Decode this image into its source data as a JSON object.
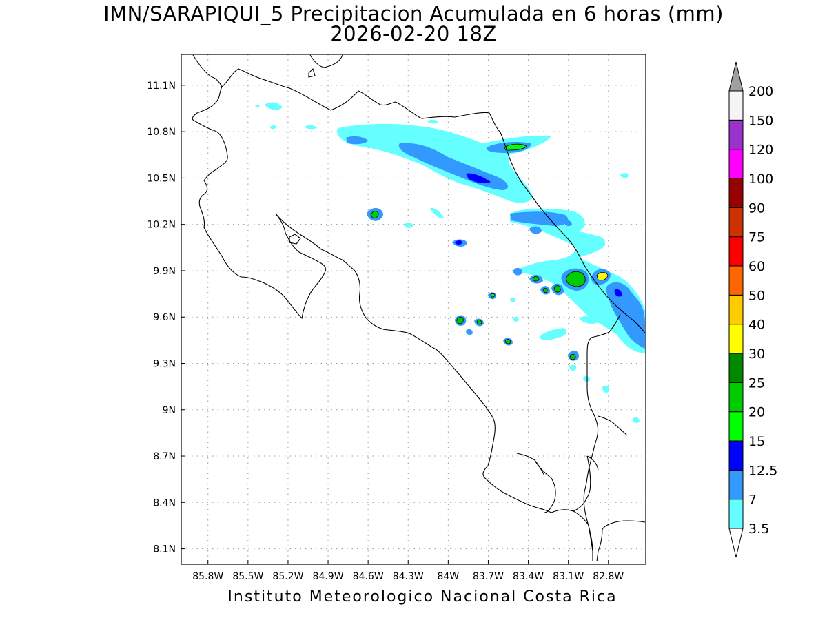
{
  "title": "IMN/SARAPIQUI_5 Precipitacion Acumulada en 6 horas (mm)",
  "subtitle": "2026-02-20 18Z",
  "credit": "Instituto Meteorologico Nacional Costa Rica",
  "map": {
    "lon_range": [
      -86.0,
      -82.52
    ],
    "lat_range": [
      8.0,
      11.3
    ],
    "x_ticks": [
      {
        "lon": -85.8,
        "label": "85.8W"
      },
      {
        "lon": -85.5,
        "label": "85.5W"
      },
      {
        "lon": -85.2,
        "label": "85.2W"
      },
      {
        "lon": -84.9,
        "label": "84.9W"
      },
      {
        "lon": -84.6,
        "label": "84.6W"
      },
      {
        "lon": -84.3,
        "label": "84.3W"
      },
      {
        "lon": -84.0,
        "label": "84W"
      },
      {
        "lon": -83.7,
        "label": "83.7W"
      },
      {
        "lon": -83.4,
        "label": "83.4W"
      },
      {
        "lon": -83.1,
        "label": "83.1W"
      },
      {
        "lon": -82.8,
        "label": "82.8W"
      }
    ],
    "y_ticks": [
      {
        "lat": 11.1,
        "label": "11.1N"
      },
      {
        "lat": 10.8,
        "label": "10.8N"
      },
      {
        "lat": 10.5,
        "label": "10.5N"
      },
      {
        "lat": 10.2,
        "label": "10.2N"
      },
      {
        "lat": 9.9,
        "label": "9.9N"
      },
      {
        "lat": 9.6,
        "label": "9.6N"
      },
      {
        "lat": 9.3,
        "label": "9.3N"
      },
      {
        "lat": 9.0,
        "label": "9N"
      },
      {
        "lat": 8.7,
        "label": "8.7N"
      },
      {
        "lat": 8.4,
        "label": "8.4N"
      },
      {
        "lat": 8.1,
        "label": "8.1N"
      }
    ],
    "grid": true
  },
  "colorbar": {
    "top_triangle_color": "#a0a0a0",
    "bottom_triangle_color": "#ffffff",
    "levels": [
      {
        "label": "3.5",
        "color": "#66ffff"
      },
      {
        "label": "7",
        "color": "#3399ff"
      },
      {
        "label": "12.5",
        "color": "#0000ff"
      },
      {
        "label": "15",
        "color": "#00ff00"
      },
      {
        "label": "20",
        "color": "#00cc00"
      },
      {
        "label": "25",
        "color": "#008800"
      },
      {
        "label": "30",
        "color": "#ffff00"
      },
      {
        "label": "40",
        "color": "#ffcc00"
      },
      {
        "label": "50",
        "color": "#ff6600"
      },
      {
        "label": "60",
        "color": "#ff0000"
      },
      {
        "label": "75",
        "color": "#cc3300"
      },
      {
        "label": "90",
        "color": "#990000"
      },
      {
        "label": "100",
        "color": "#ff00ff"
      },
      {
        "label": "120",
        "color": "#9933cc"
      },
      {
        "label": "150",
        "color": "#f5f5f5"
      }
    ],
    "top_label": "200"
  }
}
